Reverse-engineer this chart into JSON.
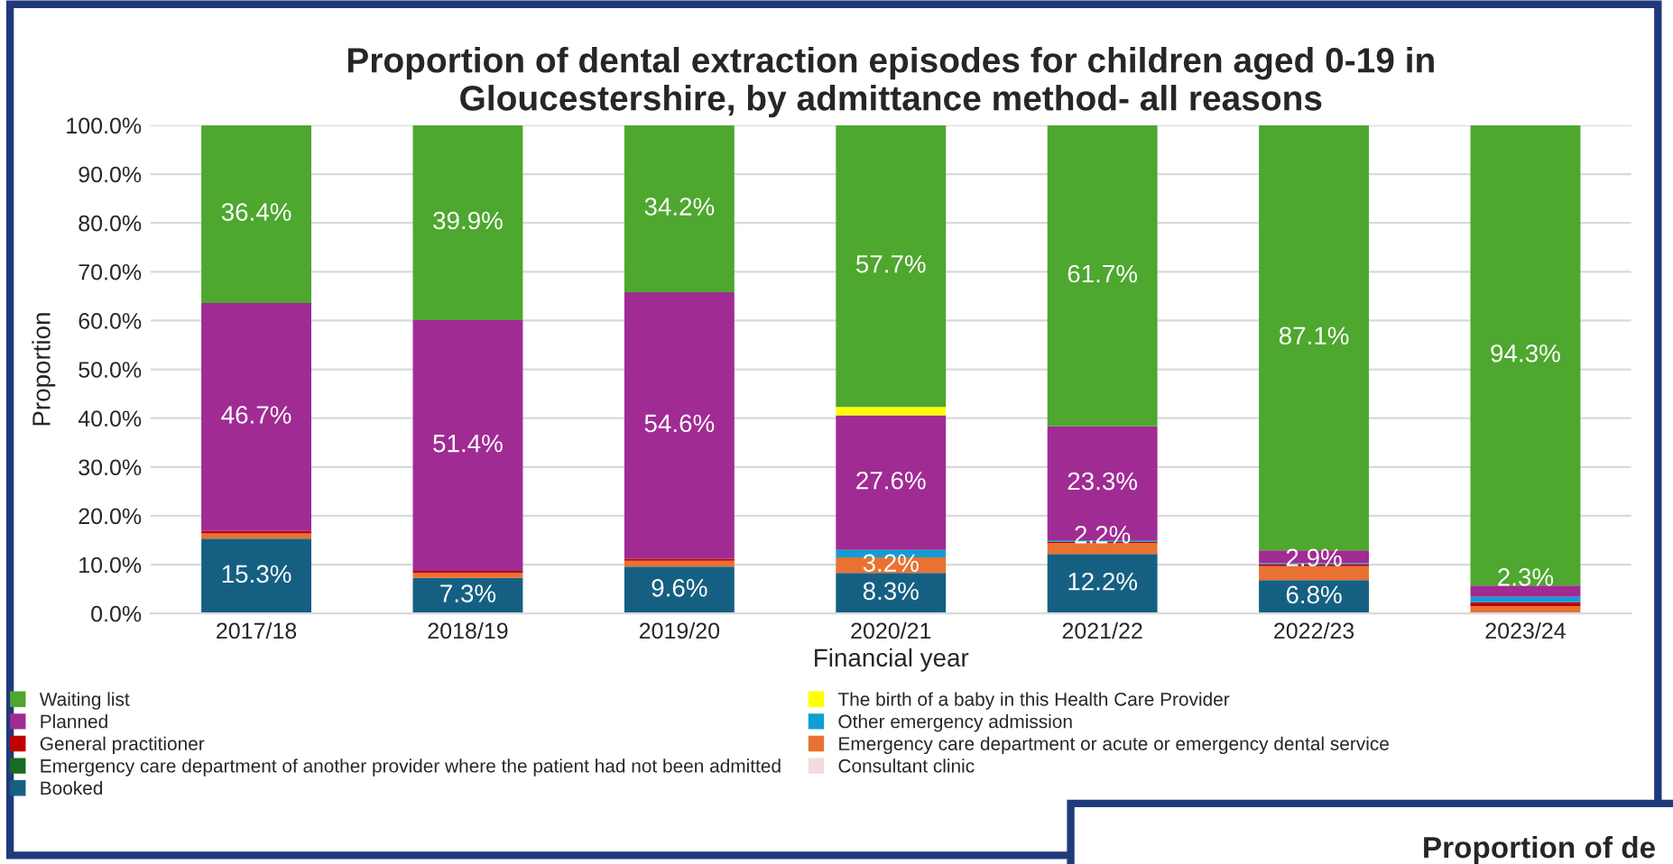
{
  "chart_data": {
    "type": "bar",
    "stacked": true,
    "title": "Proportion of dental extraction episodes for children aged 0-19 in\nGloucestershire, by admittance method- all reasons",
    "xlabel": "Financial year",
    "ylabel": "Proportion",
    "categories": [
      "2017/18",
      "2018/19",
      "2019/20",
      "2020/21",
      "2021/22",
      "2022/23",
      "2023/24"
    ],
    "ylim": [
      0,
      100
    ],
    "yticks": [
      {
        "value": 0,
        "label": "0.0%"
      },
      {
        "value": 10,
        "label": "10.0%"
      },
      {
        "value": 20,
        "label": "20.0%"
      },
      {
        "value": 30,
        "label": "30.0%"
      },
      {
        "value": 40,
        "label": "40.0%"
      },
      {
        "value": 50,
        "label": "50.0%"
      },
      {
        "value": 60,
        "label": "60.0%"
      },
      {
        "value": 70,
        "label": "70.0%"
      },
      {
        "value": 80,
        "label": "80.0%"
      },
      {
        "value": 90,
        "label": "90.0%"
      },
      {
        "value": 100,
        "label": "100.0%"
      }
    ],
    "grid": "y",
    "legend": "bottom",
    "series": [
      {
        "name": "Booked",
        "color": "#156082",
        "values": [
          15.3,
          7.3,
          9.6,
          8.3,
          12.2,
          6.8,
          0
        ],
        "value_labels": [
          "15.3%",
          "7.3%",
          "9.6%",
          "8.3%",
          "12.2%",
          "6.8%",
          null
        ]
      },
      {
        "name": "Consultant clinic",
        "color": "#f2dcdb",
        "values": [
          0,
          0,
          0,
          0,
          0,
          0,
          0
        ]
      },
      {
        "name": "Emergency care department of another provider where the patient had not been admitted",
        "color": "#196b24",
        "values": [
          0,
          0,
          0,
          0,
          0,
          0,
          0
        ]
      },
      {
        "name": "Emergency care department or acute or emergency dental service",
        "color": "#e97132",
        "values": [
          1.1,
          1.0,
          1.2,
          3.2,
          2.2,
          2.9,
          1.5
        ],
        "value_labels": [
          null,
          null,
          null,
          "3.2%",
          "2.2%",
          "2.9%",
          null
        ]
      },
      {
        "name": "General practitioner",
        "color": "#c00000",
        "values": [
          0.5,
          0.4,
          0.4,
          0,
          0.3,
          0.3,
          0.8
        ]
      },
      {
        "name": "Other emergency admission",
        "color": "#0f9ed5",
        "values": [
          0,
          0,
          0,
          1.5,
          0.3,
          0.3,
          1.1
        ]
      },
      {
        "name": "Planned",
        "color": "#a02b93",
        "values": [
          46.7,
          51.4,
          54.6,
          27.6,
          23.3,
          2.6,
          2.3
        ],
        "value_labels": [
          "46.7%",
          "51.4%",
          "54.6%",
          "27.6%",
          "23.3%",
          null,
          "2.3%"
        ]
      },
      {
        "name": "The birth of a baby in this Health Care Provider",
        "color": "#ffff00",
        "values": [
          0,
          0,
          0,
          1.7,
          0,
          0,
          0
        ]
      },
      {
        "name": "Waiting list",
        "color": "#4ea72e",
        "values": [
          36.4,
          39.9,
          34.2,
          57.7,
          61.7,
          87.1,
          94.3
        ],
        "value_labels": [
          "36.4%",
          "39.9%",
          "34.2%",
          "57.7%",
          "61.7%",
          "87.1%",
          "94.3%"
        ]
      }
    ],
    "annotations": [
      "Proportion of de"
    ]
  }
}
